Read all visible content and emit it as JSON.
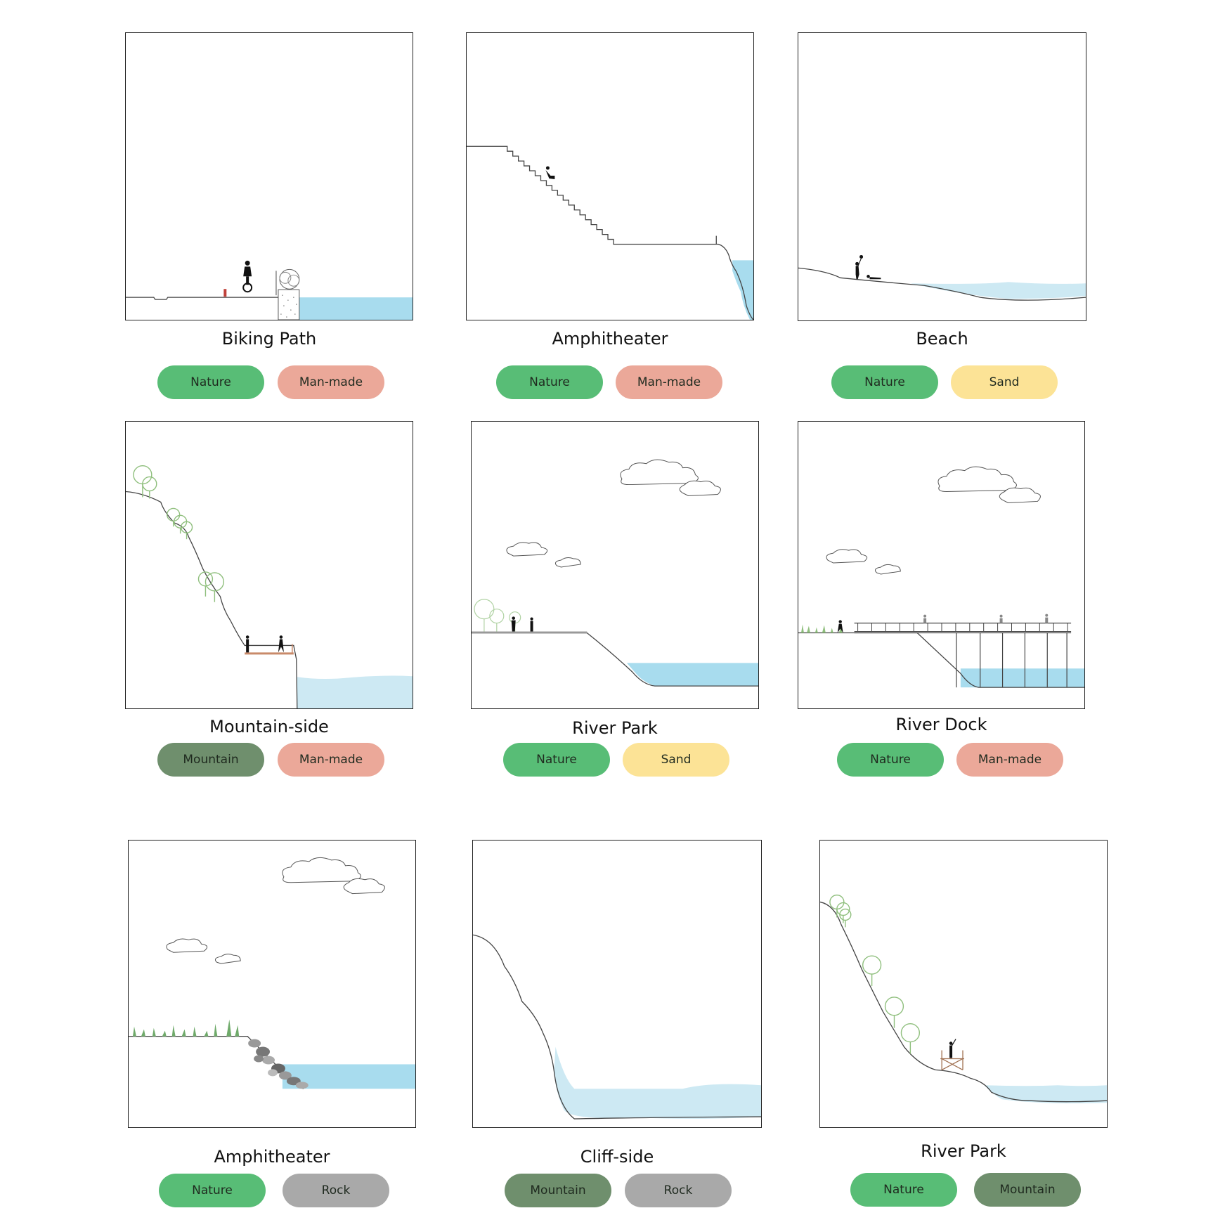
{
  "cards": [
    {
      "title": "Biking Path",
      "tags": [
        "Nature",
        "Man-made"
      ]
    },
    {
      "title": "Amphitheater",
      "tags": [
        "Nature",
        "Man-made"
      ]
    },
    {
      "title": "Beach",
      "tags": [
        "Nature",
        "Sand"
      ]
    },
    {
      "title": "Mountain-side",
      "tags": [
        "Mountain",
        "Man-made"
      ]
    },
    {
      "title": "River Park",
      "tags": [
        "Nature",
        "Sand"
      ]
    },
    {
      "title": "River Dock",
      "tags": [
        "Nature",
        "Man-made"
      ]
    },
    {
      "title": "Amphitheater",
      "tags": [
        "Nature",
        "Rock"
      ]
    },
    {
      "title": "Cliff-side",
      "tags": [
        "Mountain",
        "Rock"
      ]
    },
    {
      "title": "River Park",
      "tags": [
        "Nature",
        "Mountain"
      ]
    }
  ],
  "colors": {
    "nature": "#58bd76",
    "manmade": "#eba899",
    "sand": "#fce396",
    "mountain": "#6f8f6d",
    "rock": "#a9a9a9",
    "water": "#a8dcee",
    "water_light": "#cde9f3",
    "tree_green": "#8fbf7d"
  }
}
